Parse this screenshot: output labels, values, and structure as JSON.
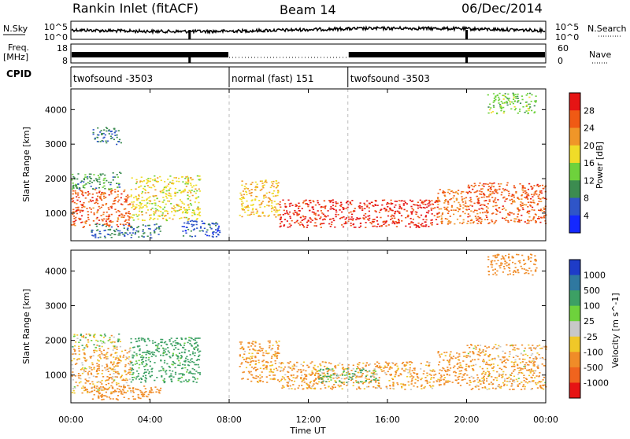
{
  "header": {
    "station": "Rankin Inlet (fitACF)",
    "beam": "Beam 14",
    "date": "06/Dec/2014"
  },
  "time_axis": {
    "title": "Time UT",
    "ticks": [
      "00:00",
      "04:00",
      "08:00",
      "12:00",
      "16:00",
      "20:00",
      "00:00"
    ]
  },
  "panels": {
    "nsky": {
      "label": "N.Sky",
      "tick_top": "10^5",
      "tick_bottom": "10^0"
    },
    "nsearch": {
      "label": "N.Search",
      "tick_top": "10^5",
      "tick_bottom": "10^0"
    },
    "freq": {
      "label1": "Freq.",
      "label2": "[MHz]",
      "tick_top": "18",
      "tick_bottom": "8"
    },
    "nave": {
      "label": "Nave",
      "tick_top": "60",
      "tick_bottom": "0"
    },
    "cpid": {
      "label": "CPID",
      "segments": [
        {
          "text": "twofsound -3503",
          "start_hr": 0,
          "end_hr": 8.0
        },
        {
          "text": "normal (fast) 151",
          "start_hr": 8.0,
          "end_hr": 14.0
        },
        {
          "text": "twofsound -3503",
          "start_hr": 14.0,
          "end_hr": 24.0
        }
      ]
    },
    "power": {
      "ylabel": "Slant Range [km]",
      "yticks": [
        "1000",
        "2000",
        "3000",
        "4000"
      ],
      "colorbar_title": "Power [dB]",
      "colorbar_labels": [
        "4",
        "8",
        "12",
        "16",
        "20",
        "24",
        "28"
      ]
    },
    "velocity": {
      "ylabel": "Slant Range [km]",
      "yticks": [
        "1000",
        "2000",
        "3000",
        "4000"
      ],
      "colorbar_title": "Velocity [m s^-1]",
      "colorbar_labels": [
        "1000",
        "500",
        "100",
        "25",
        "-25",
        "-100",
        "-500",
        "-1000"
      ]
    }
  },
  "chart_data": [
    {
      "type": "heatmap",
      "name": "power",
      "x_unit": "hours UT",
      "y_unit": "km",
      "xlim": [
        0,
        24
      ],
      "ylim": [
        200,
        4600
      ],
      "zlim": [
        0,
        32
      ],
      "colors": [
        "#1428ff",
        "#2f55c8",
        "#3c8c50",
        "#6ed23c",
        "#f0dc28",
        "#f09628",
        "#f05a14",
        "#e61414"
      ],
      "scatter_regions": [
        {
          "x": [
            0.0,
            3.0
          ],
          "y": [
            600,
            1700
          ],
          "level": 26
        },
        {
          "x": [
            3.0,
            6.5
          ],
          "y": [
            800,
            2100
          ],
          "level": 18
        },
        {
          "x": [
            0.0,
            2.5
          ],
          "y": [
            1700,
            2200
          ],
          "level": 10
        },
        {
          "x": [
            1.0,
            4.5
          ],
          "y": [
            300,
            700
          ],
          "level": 8
        },
        {
          "x": [
            5.5,
            7.5
          ],
          "y": [
            300,
            800
          ],
          "level": 6
        },
        {
          "x": [
            8.5,
            10.5
          ],
          "y": [
            900,
            2000
          ],
          "level": 20
        },
        {
          "x": [
            10.5,
            18.5
          ],
          "y": [
            600,
            1400
          ],
          "level": 29
        },
        {
          "x": [
            18.5,
            20.0
          ],
          "y": [
            700,
            1700
          ],
          "level": 24
        },
        {
          "x": [
            20.0,
            24.0
          ],
          "y": [
            700,
            1900
          ],
          "level": 26
        },
        {
          "x": [
            21.0,
            23.5
          ],
          "y": [
            3900,
            4500
          ],
          "level": 14
        },
        {
          "x": [
            1.0,
            2.5
          ],
          "y": [
            3000,
            3500
          ],
          "level": 8
        }
      ]
    },
    {
      "type": "heatmap",
      "name": "velocity",
      "x_unit": "hours UT",
      "y_unit": "km",
      "xlim": [
        0,
        24
      ],
      "ylim": [
        200,
        4600
      ],
      "zlim": [
        -1000,
        1000
      ],
      "colors": [
        "#1e3cc8",
        "#2f78a0",
        "#3ca064",
        "#6ed23c",
        "#c8c8c8",
        "#f0c828",
        "#f08c28",
        "#f0641e",
        "#e61414"
      ],
      "scatter_regions": [
        {
          "x": [
            0.0,
            3.0
          ],
          "y": [
            500,
            1800
          ],
          "level": -150
        },
        {
          "x": [
            3.0,
            6.5
          ],
          "y": [
            800,
            2100
          ],
          "level": 250
        },
        {
          "x": [
            0.0,
            2.5
          ],
          "y": [
            1800,
            2200
          ],
          "level": 0
        },
        {
          "x": [
            1.0,
            4.5
          ],
          "y": [
            300,
            700
          ],
          "level": -300
        },
        {
          "x": [
            8.5,
            10.5
          ],
          "y": [
            800,
            2000
          ],
          "level": -200
        },
        {
          "x": [
            10.5,
            18.5
          ],
          "y": [
            600,
            1400
          ],
          "level": -180
        },
        {
          "x": [
            12.5,
            15.5
          ],
          "y": [
            800,
            1200
          ],
          "level": 150
        },
        {
          "x": [
            18.5,
            20.0
          ],
          "y": [
            700,
            1700
          ],
          "level": -250
        },
        {
          "x": [
            20.0,
            24.0
          ],
          "y": [
            600,
            1900
          ],
          "level": -150
        },
        {
          "x": [
            21.0,
            23.5
          ],
          "y": [
            3900,
            4500
          ],
          "level": -300
        }
      ]
    }
  ]
}
